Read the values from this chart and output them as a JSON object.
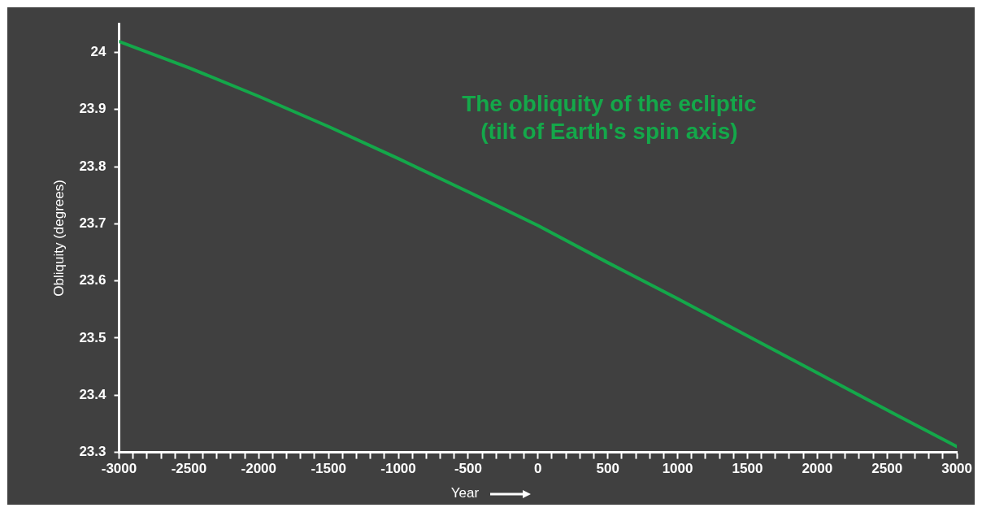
{
  "chart_data": {
    "type": "line",
    "xlabel": "Year",
    "ylabel": "Obliquity (degrees)",
    "x": [
      -3000,
      -2500,
      -2000,
      -1500,
      -1000,
      -500,
      0,
      500,
      1000,
      1500,
      2000,
      2500,
      3000
    ],
    "series": [
      {
        "name": "The obliquity of the ecliptic\n(tilt of Earth's spin axis)",
        "color": "#14a84a",
        "values": [
          24.019,
          23.973,
          23.923,
          23.87,
          23.814,
          23.756,
          23.697,
          23.632,
          23.569,
          23.504,
          23.439,
          23.374,
          23.31
        ]
      }
    ],
    "xlim": [
      -3000,
      3000
    ],
    "xticks": [
      -3000,
      {
        "value": -2900,
        "label": null
      },
      {
        "value": -2800,
        "label": null
      },
      {
        "value": -2700,
        "label": null
      },
      {
        "value": -2600,
        "label": null
      },
      -2500,
      {
        "value": -2400,
        "label": null
      },
      {
        "value": -2300,
        "label": null
      },
      {
        "value": -2200,
        "label": null
      },
      {
        "value": -2100,
        "label": null
      },
      -2000,
      {
        "value": -1900,
        "label": null
      },
      {
        "value": -1800,
        "label": null
      },
      {
        "value": -1700,
        "label": null
      },
      {
        "value": -1600,
        "label": null
      },
      -1500,
      {
        "value": -1400,
        "label": null
      },
      {
        "value": -1300,
        "label": null
      },
      {
        "value": -1200,
        "label": null
      },
      {
        "value": -1100,
        "label": null
      },
      -1000,
      {
        "value": -900,
        "label": null
      },
      {
        "value": -800,
        "label": null
      },
      {
        "value": -700,
        "label": null
      },
      {
        "value": -600,
        "label": null
      },
      -500,
      {
        "value": -400,
        "label": null
      },
      {
        "value": -300,
        "label": null
      },
      {
        "value": -200,
        "label": null
      },
      {
        "value": -100,
        "label": null
      },
      0,
      {
        "value": 100,
        "label": null
      },
      {
        "value": 200,
        "label": null
      },
      {
        "value": 300,
        "label": null
      },
      {
        "value": 400,
        "label": null
      },
      500,
      {
        "value": 600,
        "label": null
      },
      {
        "value": 700,
        "label": null
      },
      {
        "value": 800,
        "label": null
      },
      {
        "value": 900,
        "label": null
      },
      1000,
      {
        "value": 1100,
        "label": null
      },
      {
        "value": 1200,
        "label": null
      },
      {
        "value": 1300,
        "label": null
      },
      {
        "value": 1400,
        "label": null
      },
      1500,
      {
        "value": 1600,
        "label": null
      },
      {
        "value": 1700,
        "label": null
      },
      {
        "value": 1800,
        "label": null
      },
      {
        "value": 1900,
        "label": null
      },
      2000,
      {
        "value": 2100,
        "label": null
      },
      {
        "value": 2200,
        "label": null
      },
      {
        "value": 2300,
        "label": null
      },
      {
        "value": 2400,
        "label": null
      },
      2500,
      {
        "value": 2600,
        "label": null
      },
      {
        "value": 2700,
        "label": null
      },
      {
        "value": 2800,
        "label": null
      },
      {
        "value": 2900,
        "label": null
      },
      3000
    ],
    "ylim": [
      23.3,
      24.05
    ],
    "yticks": [
      23.3,
      23.4,
      23.5,
      23.6,
      23.7,
      23.8,
      23.9,
      24
    ],
    "grid": false,
    "legend": false,
    "marker": "none",
    "line_style": "solid"
  }
}
